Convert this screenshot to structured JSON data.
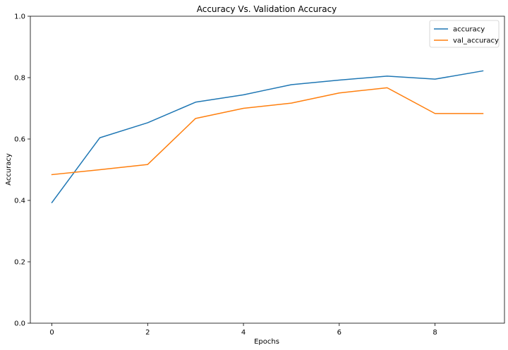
{
  "chart_data": {
    "type": "line",
    "title": "Accuracy Vs. Validation Accuracy",
    "xlabel": "Epochs",
    "ylabel": "Accuracy",
    "x": [
      0,
      1,
      2,
      3,
      4,
      5,
      6,
      7,
      8,
      9
    ],
    "xlim": [
      -0.45,
      9.45
    ],
    "ylim": [
      0.0,
      1.0
    ],
    "xticks": [
      "0",
      "2",
      "4",
      "6",
      "8"
    ],
    "yticks": [
      "0.0",
      "0.2",
      "0.4",
      "0.6",
      "0.8",
      "1.0"
    ],
    "grid": false,
    "legend_position": "top-right",
    "series": [
      {
        "name": "accuracy",
        "color": "#1f77b4",
        "values": [
          0.393,
          0.604,
          0.653,
          0.72,
          0.744,
          0.777,
          0.792,
          0.805,
          0.795,
          0.822
        ]
      },
      {
        "name": "val_accuracy",
        "color": "#ff7f0e",
        "values": [
          0.484,
          0.5,
          0.517,
          0.667,
          0.7,
          0.717,
          0.75,
          0.767,
          0.683,
          0.683
        ]
      }
    ]
  }
}
